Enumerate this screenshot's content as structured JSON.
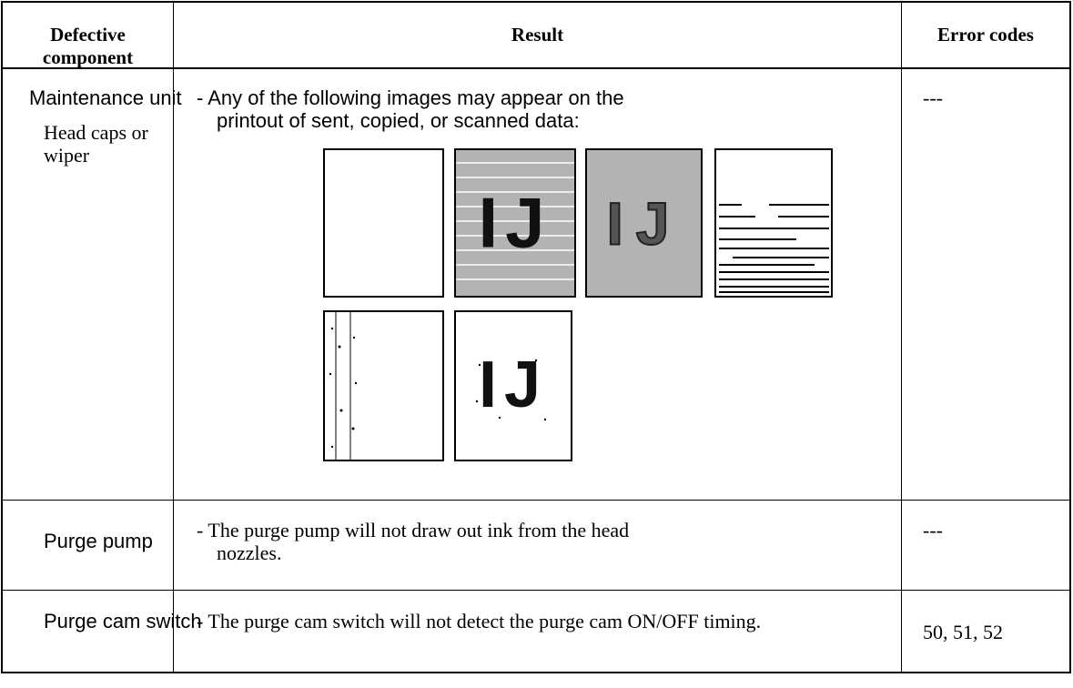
{
  "header": {
    "columns": [
      "Defective component",
      "Result",
      "Error codes"
    ]
  },
  "table": {
    "rows": [
      {
        "component": "Maintenance unit",
        "subcomponent": "Head caps or wiper",
        "result": "- Any of the following images may appear on the printout of sent, copied, or scanned data:",
        "image_labels": [
          "IJ",
          "IJ",
          "IJ"
        ],
        "error_codes": "---"
      },
      {
        "component": "Purge pump",
        "result": "- The purge pump will not draw out ink from the head nozzles.",
        "error_codes": "---"
      },
      {
        "component": "Purge cam switch",
        "result": "- The purge cam switch will not detect the purge cam ON/OFF timing.",
        "error_codes": "50, 51, 52"
      }
    ]
  }
}
